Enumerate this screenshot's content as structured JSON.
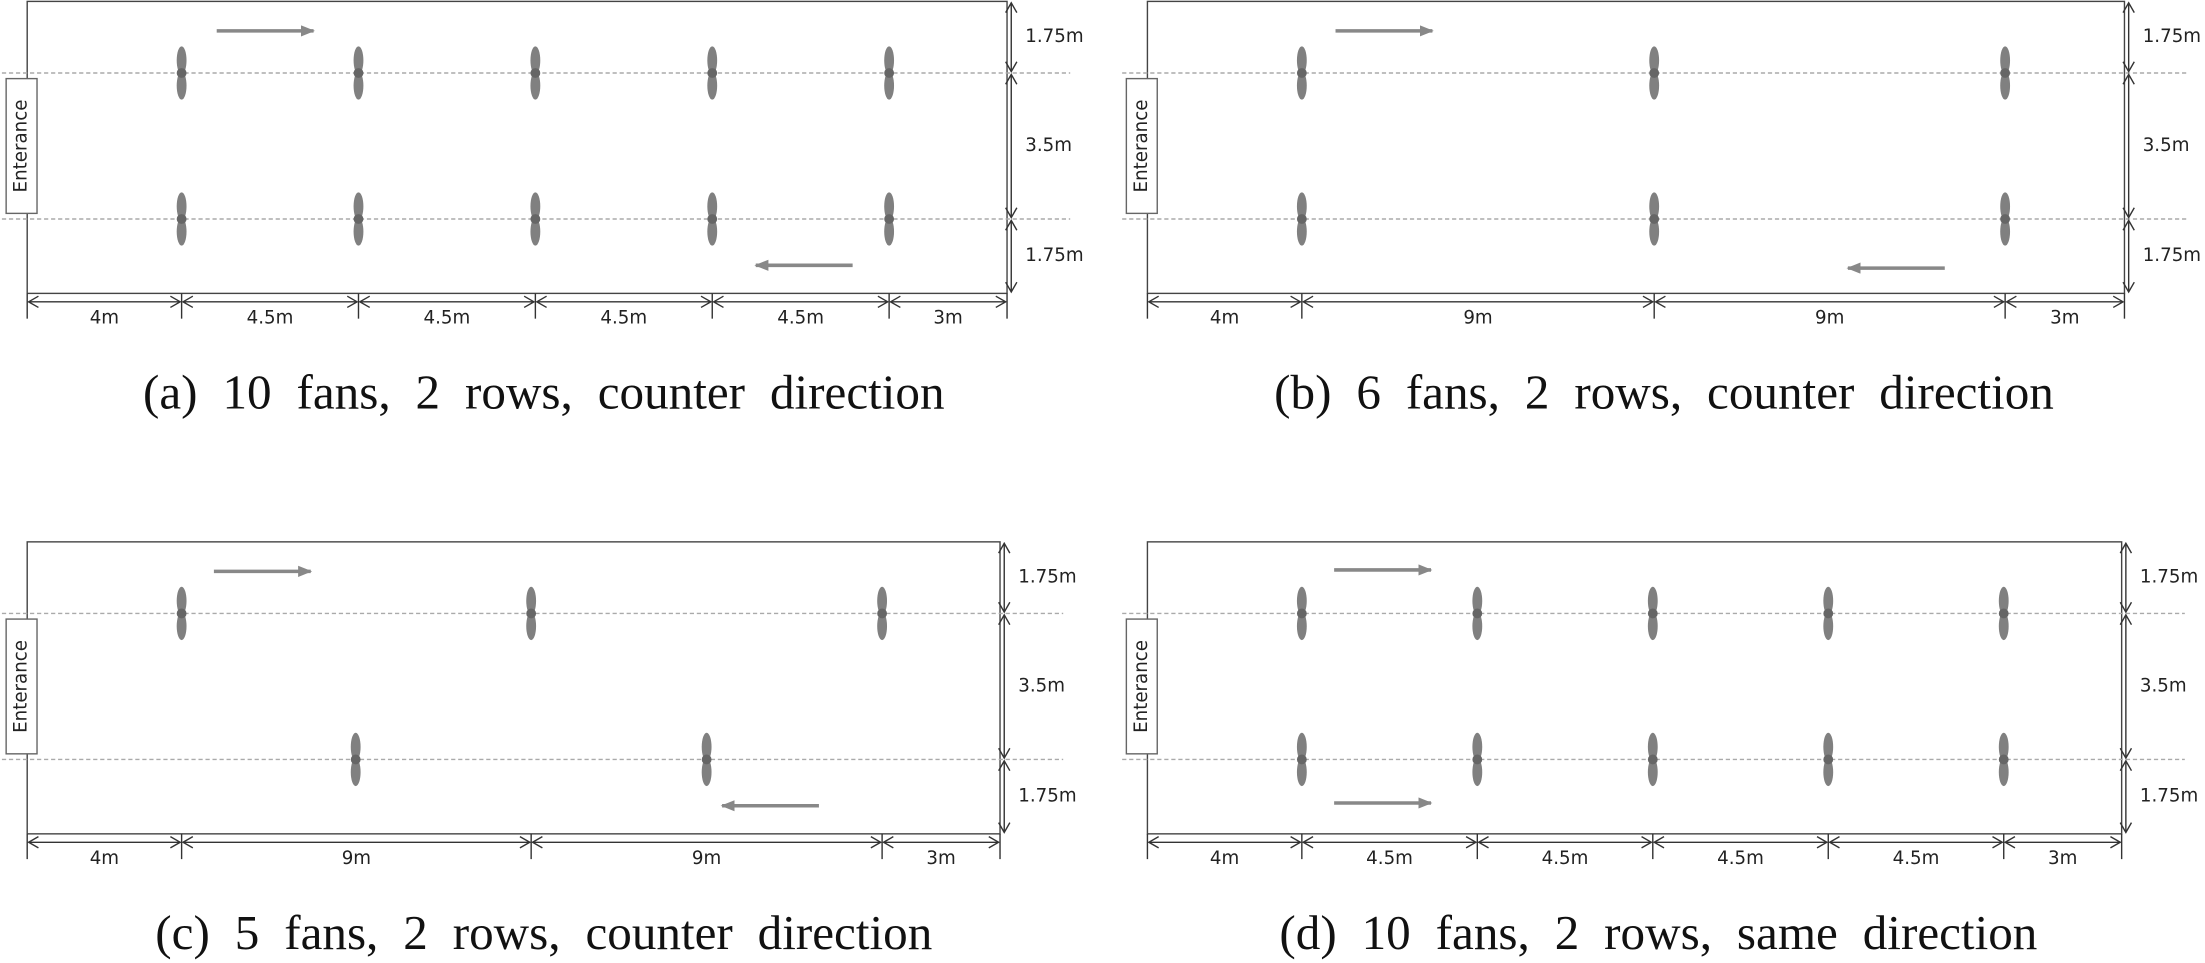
{
  "panels": [
    {
      "entrance": "Enterance",
      "heights": [
        "1.75m",
        "3.5m",
        "1.75m"
      ],
      "widths": [
        "4m",
        "4.5m",
        "4.5m",
        "4.5m",
        "4.5m",
        "3m"
      ],
      "caption": "(a) 10 fans, 2 rows, counter direction"
    },
    {
      "entrance": "Enterance",
      "heights": [
        "1.75m",
        "3.5m",
        "1.75m"
      ],
      "widths": [
        "4m",
        "9m",
        "9m",
        "3m"
      ],
      "caption": "(b) 6 fans, 2 rows, counter direction"
    },
    {
      "entrance": "Enterance",
      "heights": [
        "1.75m",
        "3.5m",
        "1.75m"
      ],
      "widths": [
        "4m",
        "9m",
        "9m",
        "3m"
      ],
      "caption": "(c) 5 fans, 2 rows, counter direction"
    },
    {
      "entrance": "Enterance",
      "heights": [
        "1.75m",
        "3.5m",
        "1.75m"
      ],
      "widths": [
        "4m",
        "4.5m",
        "4.5m",
        "4.5m",
        "4.5m",
        "3m"
      ],
      "caption": "(d) 10 fans, 2 rows, same direction"
    }
  ]
}
